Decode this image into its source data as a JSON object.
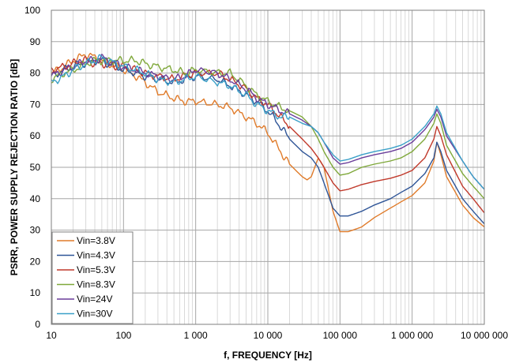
{
  "chart_data": {
    "type": "line",
    "xscale": "log",
    "xlabel": "f, FREQUENCY [Hz]",
    "ylabel": "PSRR, POWER SUPPLY REJECTION RATIO [dB]",
    "xlim": [
      10,
      10000000
    ],
    "ylim": [
      0,
      100
    ],
    "grid": true,
    "legend_position": "bottom-left",
    "x_tick_values": [
      10,
      100,
      1000,
      10000,
      100000,
      1000000,
      10000000
    ],
    "x_tick_labels": [
      "10",
      "100",
      "1 000",
      "10 000",
      "100 000",
      "1 000 000",
      "10 000 000"
    ],
    "y_tick_values": [
      0,
      10,
      20,
      30,
      40,
      50,
      60,
      70,
      80,
      90,
      100
    ],
    "y_tick_labels": [
      "0",
      "10",
      "20",
      "30",
      "40",
      "50",
      "60",
      "70",
      "80",
      "90",
      "100"
    ],
    "series": [
      {
        "name": "Vin=3.8V",
        "color": "#e07b2a",
        "x": [
          10,
          15,
          20,
          25,
          30,
          40,
          50,
          60,
          80,
          100,
          150,
          200,
          300,
          500,
          700,
          1000,
          2000,
          3000,
          5000,
          7000,
          10000,
          15000,
          20000,
          30000,
          35000,
          40000,
          50000,
          60000,
          80000,
          100000,
          130000,
          200000,
          300000,
          500000,
          700000,
          1000000,
          1500000,
          2000000,
          2200000,
          2500000,
          3000000,
          5000000,
          7000000,
          10000000
        ],
        "y": [
          80,
          82,
          84,
          85,
          86,
          85,
          84,
          83,
          82,
          81,
          79,
          77,
          74,
          72,
          71,
          71,
          70,
          69,
          66,
          64,
          61,
          55,
          51,
          47,
          46,
          47,
          53,
          50,
          36,
          29.5,
          29.5,
          31,
          34,
          37,
          39,
          41,
          45,
          52,
          58,
          54,
          47,
          38,
          34,
          31
        ]
      },
      {
        "name": "Vin=4.3V",
        "color": "#2f5597",
        "x": [
          10,
          15,
          20,
          25,
          30,
          40,
          50,
          60,
          80,
          100,
          150,
          200,
          300,
          500,
          700,
          1000,
          2000,
          3000,
          5000,
          7000,
          10000,
          15000,
          20000,
          30000,
          40000,
          50000,
          60000,
          80000,
          100000,
          130000,
          200000,
          300000,
          500000,
          700000,
          1000000,
          1500000,
          2000000,
          2200000,
          2500000,
          3000000,
          5000000,
          7000000,
          10000000
        ],
        "y": [
          79,
          81,
          82,
          83,
          83,
          84,
          84,
          83,
          82,
          81,
          80,
          79,
          78,
          77,
          78,
          79,
          78,
          76,
          73,
          71,
          68,
          63,
          59,
          55,
          53,
          50,
          45,
          37,
          34.5,
          34.5,
          36,
          38,
          40,
          42,
          44,
          48,
          53,
          58,
          55,
          49,
          40,
          36,
          32
        ]
      },
      {
        "name": "Vin=5.3V",
        "color": "#c0392b",
        "x": [
          10,
          15,
          20,
          25,
          30,
          40,
          50,
          60,
          80,
          100,
          150,
          200,
          300,
          500,
          700,
          1000,
          2000,
          3000,
          5000,
          7000,
          10000,
          15000,
          20000,
          30000,
          40000,
          50000,
          60000,
          80000,
          100000,
          130000,
          200000,
          300000,
          500000,
          700000,
          1000000,
          1500000,
          2000000,
          2200000,
          2500000,
          3000000,
          5000000,
          7000000,
          10000000
        ],
        "y": [
          81,
          82,
          83,
          84,
          84,
          83,
          83,
          83,
          82,
          82,
          81,
          80,
          79,
          78,
          79,
          80,
          80,
          78,
          75,
          72,
          70,
          66,
          63,
          59,
          56,
          53,
          50,
          45,
          42.5,
          43,
          44.5,
          45.5,
          46.5,
          47.5,
          49,
          53,
          59,
          63,
          60,
          54,
          44,
          40,
          35.5
        ]
      },
      {
        "name": "Vin=8.3V",
        "color": "#7fa83a",
        "x": [
          10,
          15,
          20,
          25,
          30,
          40,
          50,
          60,
          80,
          100,
          150,
          200,
          300,
          500,
          700,
          1000,
          2000,
          3000,
          5000,
          7000,
          10000,
          15000,
          20000,
          30000,
          40000,
          50000,
          60000,
          80000,
          100000,
          130000,
          200000,
          300000,
          500000,
          700000,
          1000000,
          1500000,
          2000000,
          2200000,
          2500000,
          3000000,
          5000000,
          7000000,
          10000000
        ],
        "y": [
          78,
          80,
          81,
          82,
          83,
          84,
          84,
          84,
          84,
          84,
          84,
          83,
          82,
          81,
          80,
          81,
          80,
          80,
          76,
          73,
          71,
          69,
          68,
          66,
          63,
          59,
          55,
          50,
          47.5,
          48,
          50,
          51,
          52,
          53,
          55,
          59,
          64,
          67,
          64,
          57,
          48,
          44,
          40
        ]
      },
      {
        "name": "Vin=24V",
        "color": "#6a3d9a",
        "x": [
          10,
          15,
          20,
          25,
          30,
          40,
          50,
          60,
          80,
          100,
          150,
          200,
          300,
          500,
          700,
          1000,
          2000,
          3000,
          5000,
          7000,
          10000,
          15000,
          20000,
          30000,
          40000,
          50000,
          60000,
          80000,
          100000,
          130000,
          200000,
          300000,
          500000,
          700000,
          1000000,
          1500000,
          2000000,
          2200000,
          2500000,
          3000000,
          5000000,
          7000000,
          10000000
        ],
        "y": [
          79,
          81,
          82,
          83,
          84,
          84,
          85,
          84,
          83,
          82,
          81,
          80,
          79,
          78,
          79,
          81,
          80,
          78,
          75,
          72,
          70,
          68,
          67,
          65,
          63,
          61,
          58,
          53,
          51,
          51.5,
          53,
          54,
          55,
          56,
          58,
          62,
          66,
          68.5,
          66,
          60,
          52,
          47,
          43
        ]
      },
      {
        "name": "Vin=30V",
        "color": "#3aa0c8",
        "x": [
          10,
          15,
          20,
          25,
          30,
          40,
          50,
          60,
          80,
          100,
          150,
          200,
          300,
          500,
          700,
          1000,
          2000,
          3000,
          5000,
          7000,
          10000,
          15000,
          20000,
          30000,
          40000,
          50000,
          60000,
          80000,
          100000,
          130000,
          200000,
          300000,
          500000,
          700000,
          1000000,
          1500000,
          2000000,
          2200000,
          2500000,
          3000000,
          5000000,
          7000000,
          10000000
        ],
        "y": [
          77,
          79,
          81,
          82,
          83,
          84,
          85,
          84,
          83,
          82,
          81,
          80,
          78,
          77,
          78,
          79,
          77,
          76,
          73,
          70,
          68,
          66,
          66,
          64,
          63,
          61,
          58,
          54,
          52,
          52.5,
          54,
          55,
          56,
          57,
          59,
          63,
          67,
          69.5,
          67,
          61,
          52,
          47,
          43
        ]
      }
    ]
  }
}
